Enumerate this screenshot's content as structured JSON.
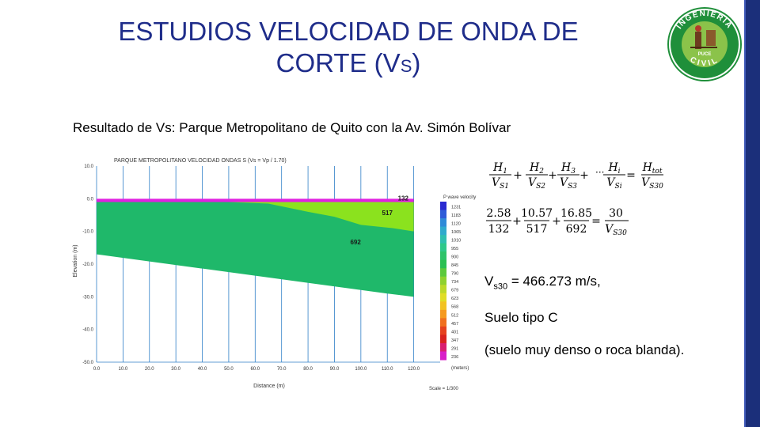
{
  "slide": {
    "title_line1": "ESTUDIOS  VELOCIDAD DE ONDA DE",
    "title_line2_main": "CORTE (V",
    "title_line2_sub": "S",
    "title_line2_end": ")",
    "subtitle": "Resultado de  Vs: Parque Metropolitano de Quito con la Av. Simón Bolívar"
  },
  "logo": {
    "text_top": "INGENIERIA",
    "text_bottom": "CIVIL",
    "text_center": "PUCE",
    "ring_color": "#1f8f3a",
    "bg_color": "#8bc34a"
  },
  "chart_data": {
    "type": "area",
    "title": "PARQUE METROPOLITANO VELOCIDAD ONDAS S (Vs = Vp / 1.70)",
    "xlabel": "Distance (m)",
    "ylabel": "Elevation (m)",
    "xlim": [
      0,
      130
    ],
    "ylim": [
      -50,
      10
    ],
    "x_ticks": [
      "0.0",
      "10.0",
      "20.0",
      "30.0",
      "40.0",
      "50.0",
      "60.0",
      "70.0",
      "80.0",
      "90.0",
      "100.0",
      "110.0",
      "120.0"
    ],
    "y_ticks": [
      "10.0",
      "0.0",
      "-10.0",
      "-20.0",
      "-30.0",
      "-40.0",
      "-50.0"
    ],
    "x_unit": "(meters)",
    "scale_note": "Scale = 1/300",
    "layers": [
      {
        "name": "132",
        "velocity": 132,
        "color": "#e020e0"
      },
      {
        "name": "517",
        "velocity": 517,
        "color": "#8be21e"
      },
      {
        "name": "692",
        "velocity": 692,
        "color": "#1fb86a"
      }
    ],
    "legend_title": "P wave velocity",
    "legend_values": [
      "1231",
      "1183",
      "1120",
      "1065",
      "1010",
      "955",
      "900",
      "845",
      "790",
      "734",
      "679",
      "623",
      "568",
      "512",
      "457",
      "401",
      "347",
      "291",
      "236"
    ],
    "legend_colors": [
      "#2a2ad0",
      "#2d5bd8",
      "#2f8ad8",
      "#30aacd",
      "#30bfb0",
      "#2fc88a",
      "#2ec36a",
      "#2bbf52",
      "#5cc93b",
      "#8fd12e",
      "#bcd929",
      "#e0dd26",
      "#f2c222",
      "#f59a20",
      "#f0701f",
      "#e6421f",
      "#d9231f",
      "#d91f70",
      "#d81fc8"
    ]
  },
  "equations": {
    "generic": {
      "terms": [
        [
          "H",
          "1",
          "V",
          "S1"
        ],
        [
          "H",
          "2",
          "V",
          "S2"
        ],
        [
          "H",
          "3",
          "V",
          "S3"
        ],
        [
          "H",
          "i",
          "V",
          "Si"
        ]
      ],
      "ellipsis": "···",
      "rhs": [
        "H",
        "tot",
        "V",
        "S30"
      ]
    },
    "numeric": {
      "terms": [
        [
          "2.58",
          "132"
        ],
        [
          "10.57",
          "517"
        ],
        [
          "16.85",
          "692"
        ]
      ],
      "rhs_num": "30",
      "rhs_den_main": "V",
      "rhs_den_sub": "S30"
    }
  },
  "results": {
    "vs30_prefix": "V",
    "vs30_sub": "s30",
    "vs30_value": " = 466.273 m/s,",
    "soil_type": "Suelo tipo C",
    "soil_desc": "(suelo muy denso o roca blanda)."
  }
}
